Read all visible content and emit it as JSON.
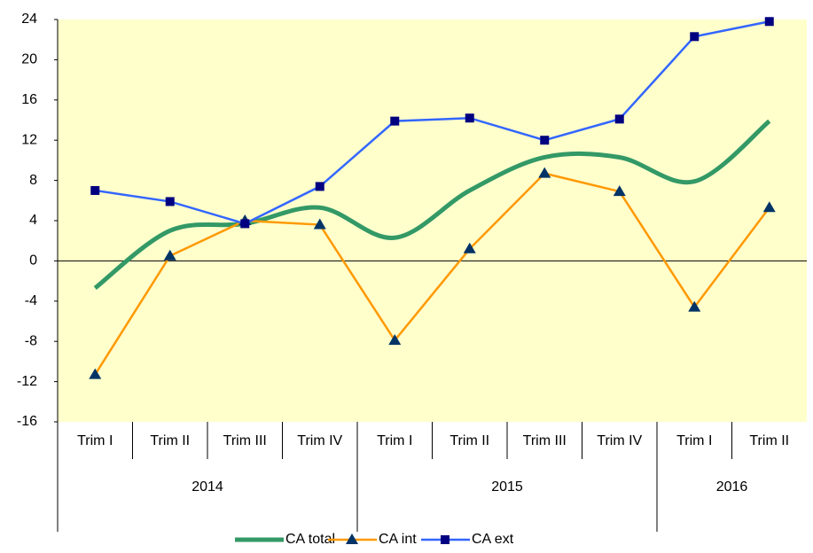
{
  "chart_data": {
    "type": "line",
    "categories": [
      "Trim I",
      "Trim II",
      "Trim III",
      "Trim IV",
      "Trim I",
      "Trim II",
      "Trim III",
      "Trim IV",
      "Trim I",
      "Trim II"
    ],
    "groups": [
      {
        "name": "2014",
        "count": 4
      },
      {
        "name": "2015",
        "count": 4
      },
      {
        "name": "2016",
        "count": 2
      }
    ],
    "series": [
      {
        "name": "CA total",
        "color": "#339966",
        "smooth": true,
        "marker": "none",
        "values": [
          -2.7,
          3.0,
          3.7,
          5.3,
          2.3,
          7.0,
          10.3,
          10.3,
          7.9,
          13.9
        ]
      },
      {
        "name": "CA int",
        "color": "#ff9900",
        "marker": "triangle",
        "marker_color": "#003366",
        "values": [
          -11.3,
          0.5,
          4.0,
          3.6,
          -7.9,
          1.2,
          8.7,
          6.9,
          -4.6,
          5.3
        ]
      },
      {
        "name": "CA ext",
        "color": "#3366ff",
        "marker": "square",
        "marker_color": "#000080",
        "values": [
          7.0,
          5.9,
          3.7,
          7.4,
          13.9,
          14.2,
          12.0,
          14.1,
          22.3,
          23.8
        ]
      }
    ],
    "ylim": [
      -16,
      24
    ],
    "yticks": [
      -16,
      -12,
      -8,
      -4,
      0,
      4,
      8,
      12,
      16,
      20,
      24
    ],
    "grid": false,
    "background": "#ffffcc",
    "legend": "bottom"
  }
}
